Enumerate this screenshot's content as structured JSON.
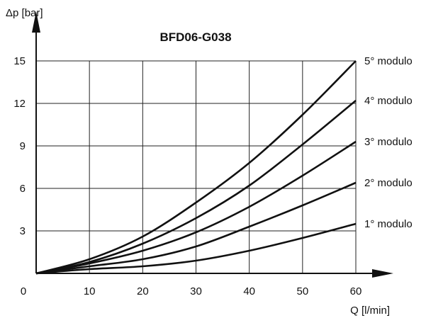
{
  "chart_data": {
    "type": "line",
    "title": "BFD06-G038",
    "xlabel": "Q [l/min]",
    "ylabel": "Δp [bar]",
    "x_ticks": [
      10,
      20,
      30,
      40,
      50,
      60
    ],
    "y_ticks": [
      3,
      6,
      9,
      12,
      15
    ],
    "origin_label": "0",
    "xlim": [
      0,
      60
    ],
    "ylim": [
      0,
      15
    ],
    "grid": true,
    "x": [
      0,
      10,
      20,
      30,
      40,
      50,
      60
    ],
    "series": [
      {
        "name": "1° modulo",
        "values": [
          0,
          0.3,
          0.5,
          0.9,
          1.6,
          2.5,
          3.5
        ]
      },
      {
        "name": "2° modulo",
        "values": [
          0,
          0.5,
          1.0,
          1.9,
          3.3,
          4.8,
          6.4
        ]
      },
      {
        "name": "3° modulo",
        "values": [
          0,
          0.7,
          1.6,
          2.9,
          4.7,
          6.9,
          9.3
        ]
      },
      {
        "name": "4° modulo",
        "values": [
          0,
          0.8,
          2.1,
          3.9,
          6.2,
          9.1,
          12.2
        ]
      },
      {
        "name": "5° modulo",
        "values": [
          0,
          1.0,
          2.6,
          5.0,
          7.8,
          11.2,
          15.0
        ]
      }
    ]
  }
}
